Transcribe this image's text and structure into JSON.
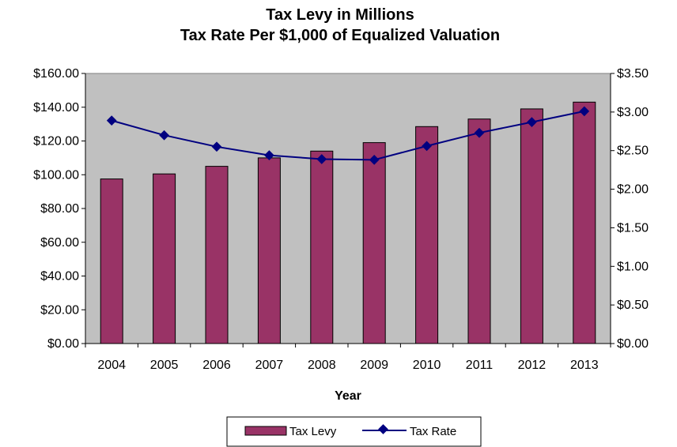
{
  "chart_data": {
    "type": "bar+line",
    "title_line1": "Tax Levy in Millions",
    "title_line2": "Tax Rate Per $1,000 of Equalized Valuation",
    "xlabel": "Year",
    "categories": [
      "2004",
      "2005",
      "2006",
      "2007",
      "2008",
      "2009",
      "2010",
      "2011",
      "2012",
      "2013"
    ],
    "series": [
      {
        "name": "Tax Levy",
        "kind": "bar",
        "axis": "left",
        "color": "#993366",
        "values": [
          97.5,
          100.5,
          105.0,
          110.0,
          114.0,
          119.0,
          128.5,
          133.0,
          139.0,
          143.0
        ]
      },
      {
        "name": "Tax Rate",
        "kind": "line",
        "axis": "right",
        "color": "#000080",
        "values": [
          2.89,
          2.7,
          2.55,
          2.44,
          2.39,
          2.38,
          2.56,
          2.73,
          2.87,
          3.01
        ]
      }
    ],
    "y_left": {
      "min": 0,
      "max": 160,
      "step": 20,
      "tick_labels": [
        "$0.00",
        "$20.00",
        "$40.00",
        "$60.00",
        "$80.00",
        "$100.00",
        "$120.00",
        "$140.00",
        "$160.00"
      ]
    },
    "y_right": {
      "min": 0,
      "max": 3.5,
      "step": 0.5,
      "tick_labels": [
        "$0.00",
        "$0.50",
        "$1.00",
        "$1.50",
        "$2.00",
        "$2.50",
        "$3.00",
        "$3.50"
      ]
    },
    "plot_background": "#c0c0c0",
    "grid": false,
    "legend_position": "bottom"
  }
}
